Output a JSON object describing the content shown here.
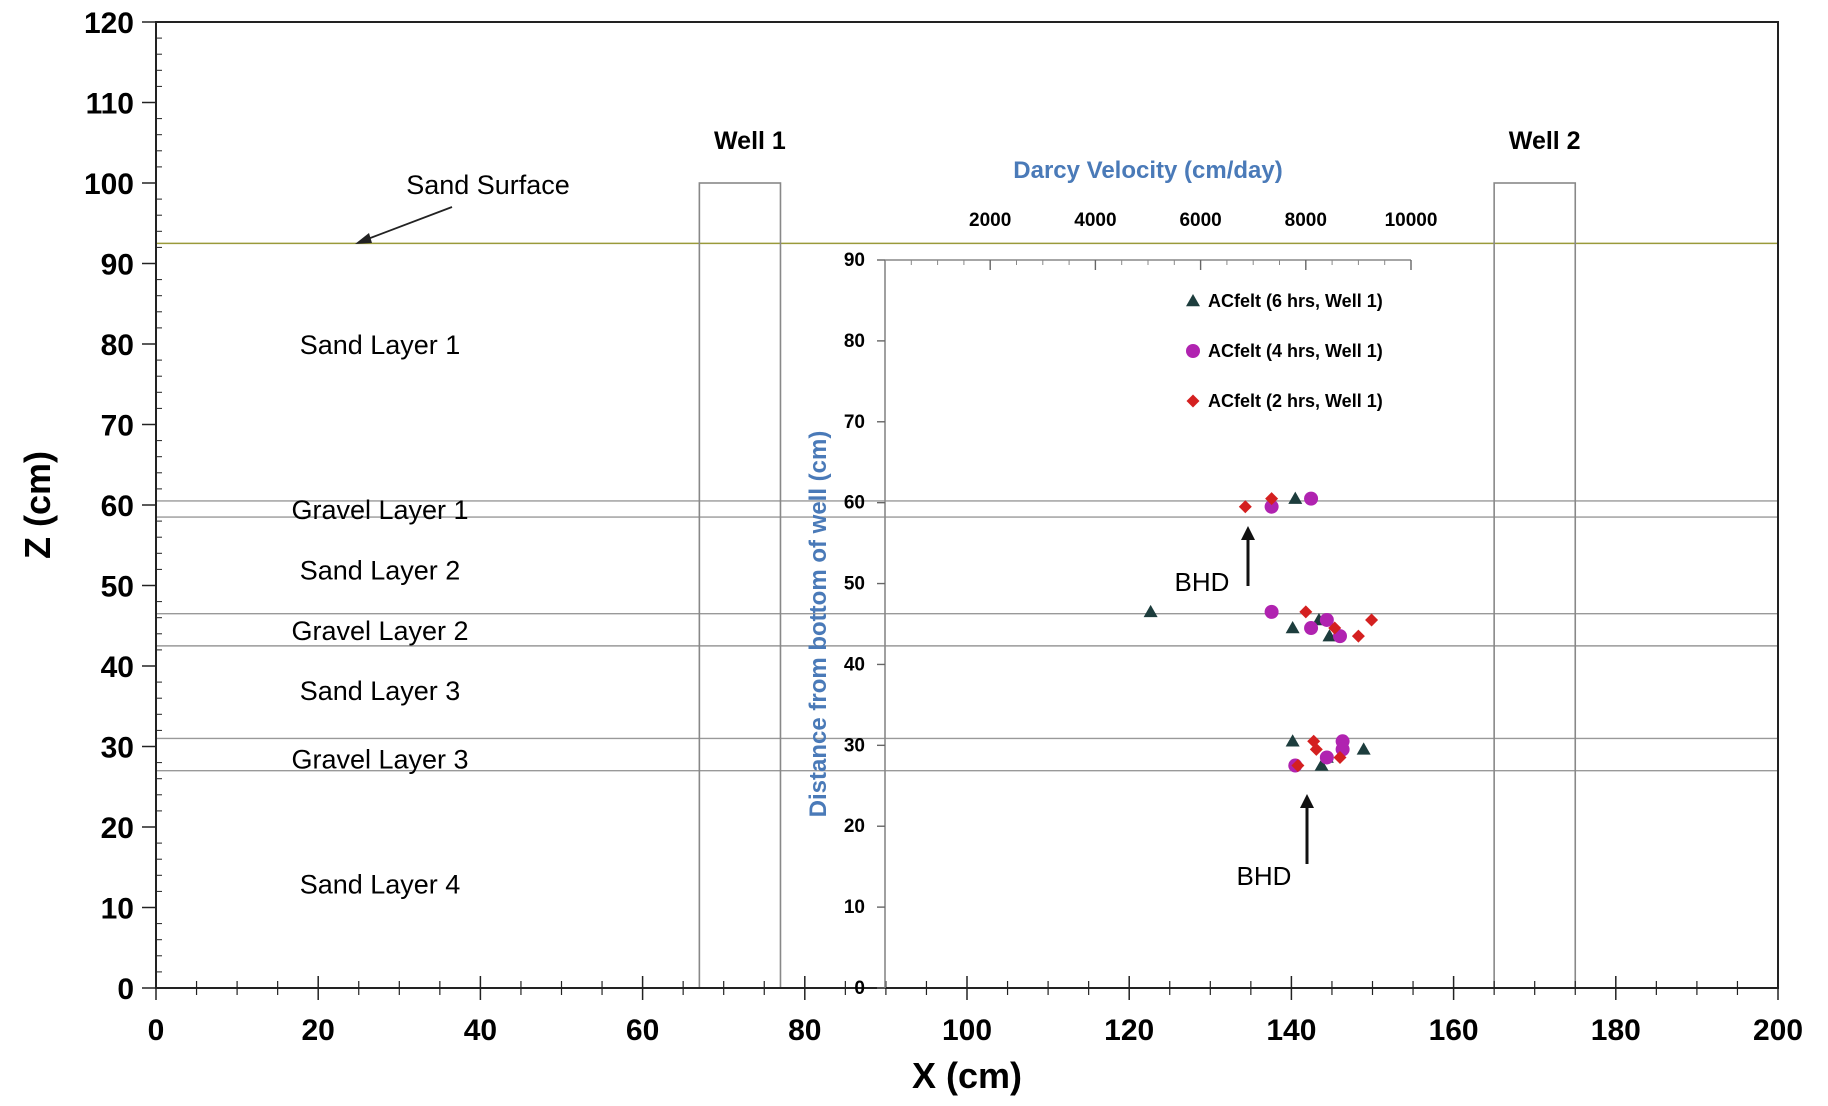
{
  "chart_data": {
    "type": "scatter",
    "main_axes": {
      "xlabel": "X (cm)",
      "ylabel": "Z (cm)",
      "xlim": [
        0,
        200
      ],
      "ylim": [
        0,
        120
      ],
      "x_ticks": [
        0,
        20,
        40,
        60,
        80,
        100,
        120,
        140,
        160,
        180,
        200
      ],
      "y_ticks": [
        0,
        10,
        20,
        30,
        40,
        50,
        60,
        70,
        80,
        90,
        100,
        110,
        120
      ],
      "grid": false
    },
    "sand_surface": {
      "z": 92.5,
      "label": "Sand Surface"
    },
    "layer_boundaries_z": [
      60.5,
      58.5,
      46.5,
      42.5,
      31,
      27
    ],
    "layers": [
      {
        "label": "Sand Layer 1",
        "z": 80
      },
      {
        "label": "Gravel Layer 1",
        "z": 59.5
      },
      {
        "label": "Sand Layer 2",
        "z": 52
      },
      {
        "label": "Gravel Layer 2",
        "z": 44.5
      },
      {
        "label": "Sand Layer 3",
        "z": 37
      },
      {
        "label": "Gravel Layer 3",
        "z": 28.5
      },
      {
        "label": "Sand Layer 4",
        "z": 13
      }
    ],
    "wells": [
      {
        "label": "Well 1",
        "x_range": [
          67,
          77
        ],
        "z_top": 100
      },
      {
        "label": "Well 2",
        "x_range": [
          165,
          175
        ],
        "z_top": 100
      }
    ],
    "inset": {
      "xlabel": "Darcy Velocity (cm/day)",
      "ylabel": "Distance from bottom of well (cm)",
      "xlim": [
        0,
        10000
      ],
      "ylim": [
        0,
        90
      ],
      "x_ticks": [
        2000,
        4000,
        6000,
        8000,
        10000
      ],
      "y_ticks": [
        0,
        10,
        20,
        30,
        40,
        50,
        60,
        70,
        80,
        90
      ],
      "legend_position": "top-right",
      "series": [
        {
          "name": "ACfelt (6 hrs, Well 1)",
          "marker": "triangle",
          "color": "#1d3d3d",
          "points": [
            [
              7800,
              60.5
            ],
            [
              5050,
              46.5
            ],
            [
              7750,
              44.5
            ],
            [
              8250,
              45.5
            ],
            [
              8450,
              43.5
            ],
            [
              7750,
              30.5
            ],
            [
              9100,
              29.5
            ],
            [
              8400,
              28.5
            ],
            [
              8300,
              27.5
            ]
          ]
        },
        {
          "name": "ACfelt (4 hrs, Well 1)",
          "marker": "circle",
          "color": "#b023b0",
          "points": [
            [
              8100,
              60.5
            ],
            [
              7350,
              59.5
            ],
            [
              7350,
              46.5
            ],
            [
              8400,
              45.5
            ],
            [
              8100,
              44.5
            ],
            [
              8650,
              43.5
            ],
            [
              8700,
              30.5
            ],
            [
              8700,
              29.5
            ],
            [
              8400,
              28.5
            ],
            [
              7800,
              27.5
            ]
          ]
        },
        {
          "name": "ACfelt (2 hrs, Well 1)",
          "marker": "diamond",
          "color": "#d42020",
          "points": [
            [
              6850,
              59.5
            ],
            [
              7350,
              60.5
            ],
            [
              8000,
              46.5
            ],
            [
              9250,
              45.5
            ],
            [
              8550,
              44.5
            ],
            [
              9000,
              43.5
            ],
            [
              8150,
              30.5
            ],
            [
              8200,
              29.5
            ],
            [
              8650,
              28.5
            ],
            [
              7850,
              27.5
            ]
          ]
        }
      ],
      "annotations": [
        {
          "text": "BHD",
          "x": 7350,
          "y": 51
        },
        {
          "text": "BHD",
          "x": 8300,
          "y": 15
        }
      ]
    }
  }
}
